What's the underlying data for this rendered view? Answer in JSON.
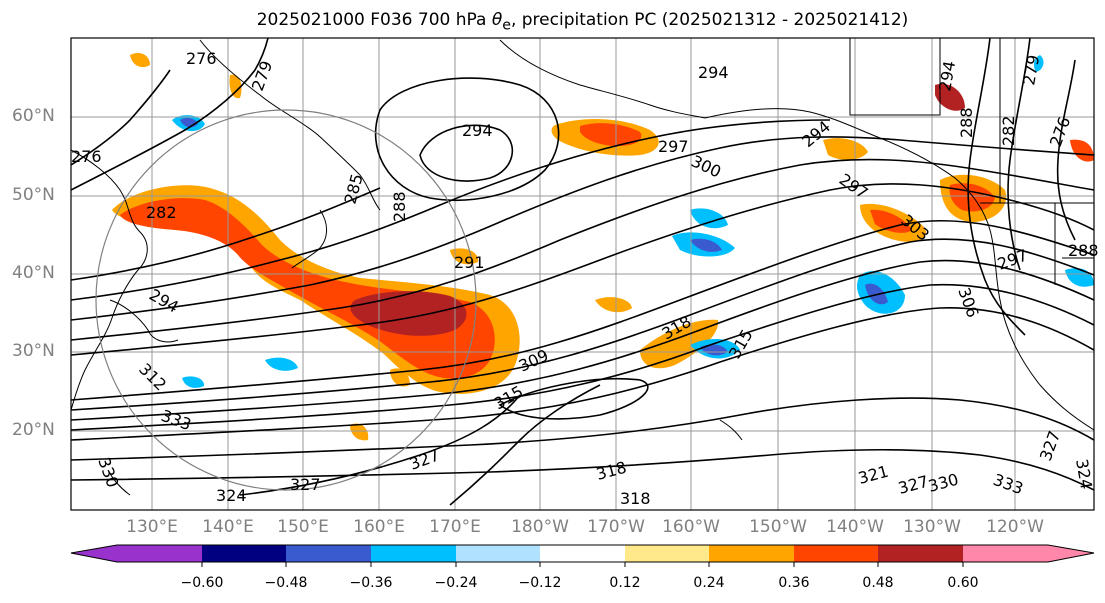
{
  "title": {
    "prefix": "2025021000 F036 700 hPa ",
    "theta_symbol": "θ",
    "theta_sub": "e",
    "suffix": ", precipitation PC (2025021312 - 2025021412)"
  },
  "latitude_labels": [
    "60°N",
    "50°N",
    "40°N",
    "30°N",
    "20°N"
  ],
  "longitude_labels": [
    "130°E",
    "140°E",
    "150°E",
    "160°E",
    "170°E",
    "180°W",
    "170°W",
    "160°W",
    "150°W",
    "140°W",
    "130°W",
    "120°W"
  ],
  "contour_labels": [
    "276",
    "279",
    "294",
    "294",
    "297",
    "300",
    "294",
    "276",
    "282",
    "285",
    "288",
    "291",
    "297",
    "294",
    "312",
    "309",
    "315",
    "318",
    "315",
    "333",
    "327",
    "324",
    "327",
    "330",
    "318",
    "318",
    "321",
    "327",
    "330",
    "333",
    "327",
    "324",
    "303",
    "306",
    "297",
    "288",
    "282",
    "276",
    "294",
    "279",
    "288"
  ],
  "colorbar": {
    "ticks": [
      "−0.60",
      "−0.48",
      "−0.36",
      "−0.24",
      "−0.12",
      "0.12",
      "0.24",
      "0.36",
      "0.48",
      "0.60"
    ],
    "colors": [
      "#9932cc",
      "#000080",
      "#3a5bd0",
      "#00bfff",
      "#b0e2ff",
      "#ffffff",
      "#ffe98a",
      "#ffa500",
      "#ff4500",
      "#b22222",
      "#ff88aa"
    ]
  },
  "palette": {
    "contour": "#000000",
    "grid": "#999999",
    "coast": "#000000"
  }
}
